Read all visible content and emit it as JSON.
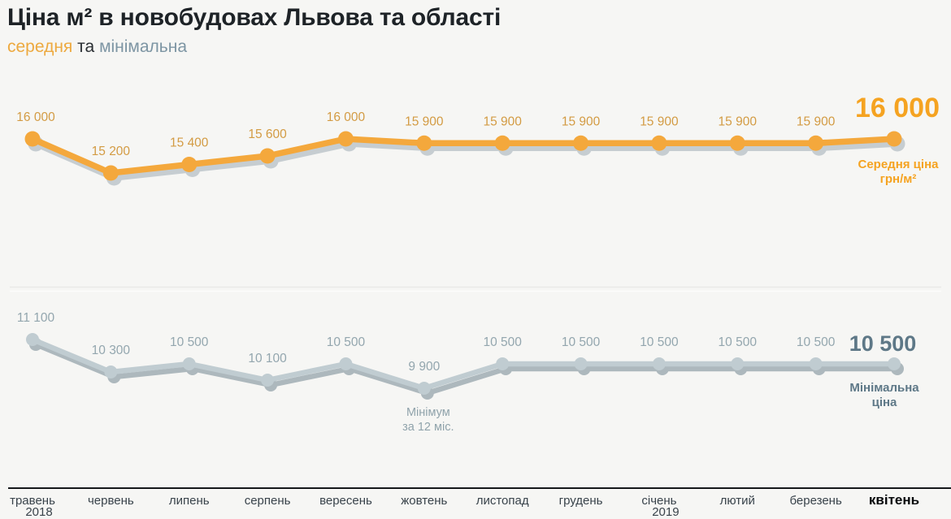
{
  "header": {
    "title": "Ціна м² в новобудовах Львова та області",
    "subtitle_average": "середня",
    "subtitle_connector": "та",
    "subtitle_min": "мінімальна"
  },
  "chart_data": {
    "type": "line",
    "title": "Ціна м² в новобудовах Львова та області",
    "subtitle": "середня та мінімальна",
    "x_categories": [
      {
        "label": "травень",
        "year": "2018"
      },
      {
        "label": "червень"
      },
      {
        "label": "липень"
      },
      {
        "label": "серпень"
      },
      {
        "label": "вересень"
      },
      {
        "label": "жовтень"
      },
      {
        "label": "листопад"
      },
      {
        "label": "грудень"
      },
      {
        "label": "січень",
        "year": "2019"
      },
      {
        "label": "лютий"
      },
      {
        "label": "березень"
      },
      {
        "label": "квітень"
      }
    ],
    "series": [
      {
        "name": "Середня ціна грн/м²",
        "name_lines": [
          "Середня ціна",
          "грн/м²"
        ],
        "values": [
          16000,
          15200,
          15400,
          15600,
          16000,
          15900,
          15900,
          15900,
          15900,
          15900,
          15900,
          16000
        ],
        "end_value_label": "16 000"
      },
      {
        "name": "Мінімальна ціна",
        "name_lines": [
          "Мінімальна",
          "ціна"
        ],
        "values": [
          11100,
          10300,
          10500,
          10100,
          10500,
          9900,
          10500,
          10500,
          10500,
          10500,
          10500,
          10500
        ],
        "end_value_label": "10 500"
      }
    ],
    "annotation": {
      "lines": [
        "Мінімум",
        "за 12 міс."
      ],
      "series_index": 1,
      "point_index": 5
    },
    "legend_position": "right-inline",
    "grid": "single-faint-horizontal"
  },
  "colors": {
    "background": "#f6f6f4",
    "title_text": "#1e2327",
    "subtitle_average": "#eda93f",
    "subtitle_text": "#2a2f33",
    "subtitle_min": "#7d95a3",
    "avg_line": "#f4a83c",
    "avg_shadow": "#c6cdd1",
    "avg_value_label": "#d39b43",
    "avg_end_label": "#f5a321",
    "min_line": "#c0ccd1",
    "min_shadow": "#adb8bd",
    "min_value_label": "#93a6ae",
    "min_end_label": "#5e7887",
    "annotation_text": "#90a3ab",
    "axis_line": "#15181a",
    "axis_label": "#39434b",
    "axis_label_bold": "#05070a",
    "gridline": "#e9e9e7",
    "gridline_under": "#fcfcfb"
  }
}
